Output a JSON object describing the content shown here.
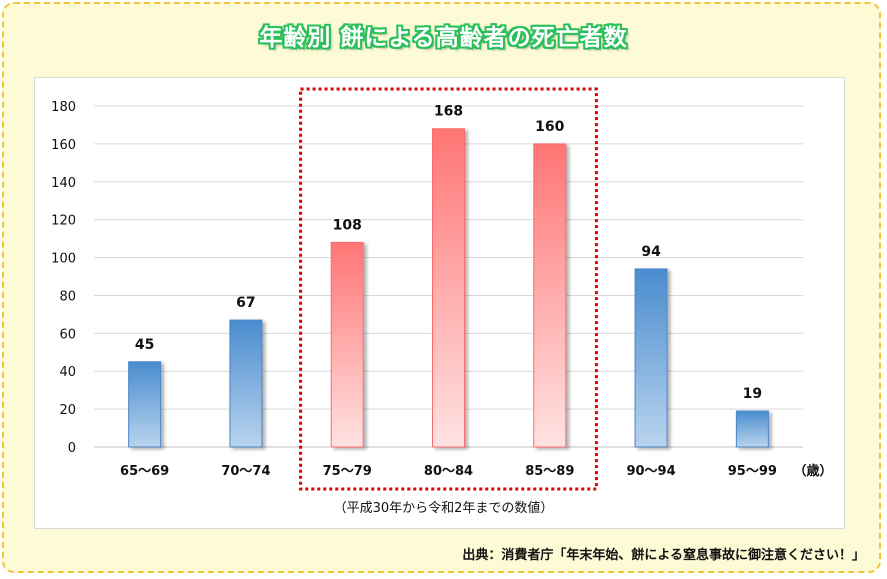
{
  "title": "年齢別 餅による高齢者の死亡者数",
  "footnote": "（平成30年から令和2年までの数値）",
  "source": "出典：消費者庁「年末年始、餅による窒息事故に御注意ください！」",
  "colors": {
    "blue": "#5b9bd5",
    "red": "#ff7b7b",
    "highlight_box": "#e00000"
  },
  "chart_data": {
    "type": "bar",
    "categories": [
      "65〜69",
      "70〜74",
      "75〜79",
      "80〜84",
      "85〜89",
      "90〜94",
      "95〜99"
    ],
    "values": [
      45,
      67,
      108,
      168,
      160,
      94,
      19
    ],
    "highlighted": [
      false,
      false,
      true,
      true,
      true,
      false,
      false
    ],
    "x_unit": "（歳）",
    "ylim": [
      0,
      180
    ],
    "yticks": [
      0,
      20,
      40,
      60,
      80,
      100,
      120,
      140,
      160,
      180
    ],
    "grid": true,
    "legend": "none"
  }
}
